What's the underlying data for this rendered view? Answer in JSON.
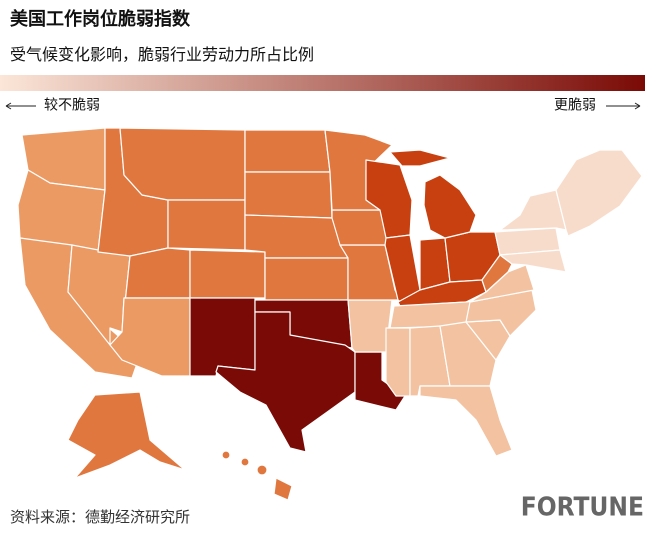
{
  "header": {
    "title": "美国工作岗位脆弱指数",
    "subtitle": "受气候变化影响，脆弱行业劳动力所占比例"
  },
  "legend": {
    "low_label": "较不脆弱",
    "high_label": "更脆弱",
    "colors": [
      "#fbe6d8",
      "#7a0a05"
    ]
  },
  "footer": {
    "source": "资料来源：德勤经济研究所",
    "brand": "FORTUNE"
  }
}
